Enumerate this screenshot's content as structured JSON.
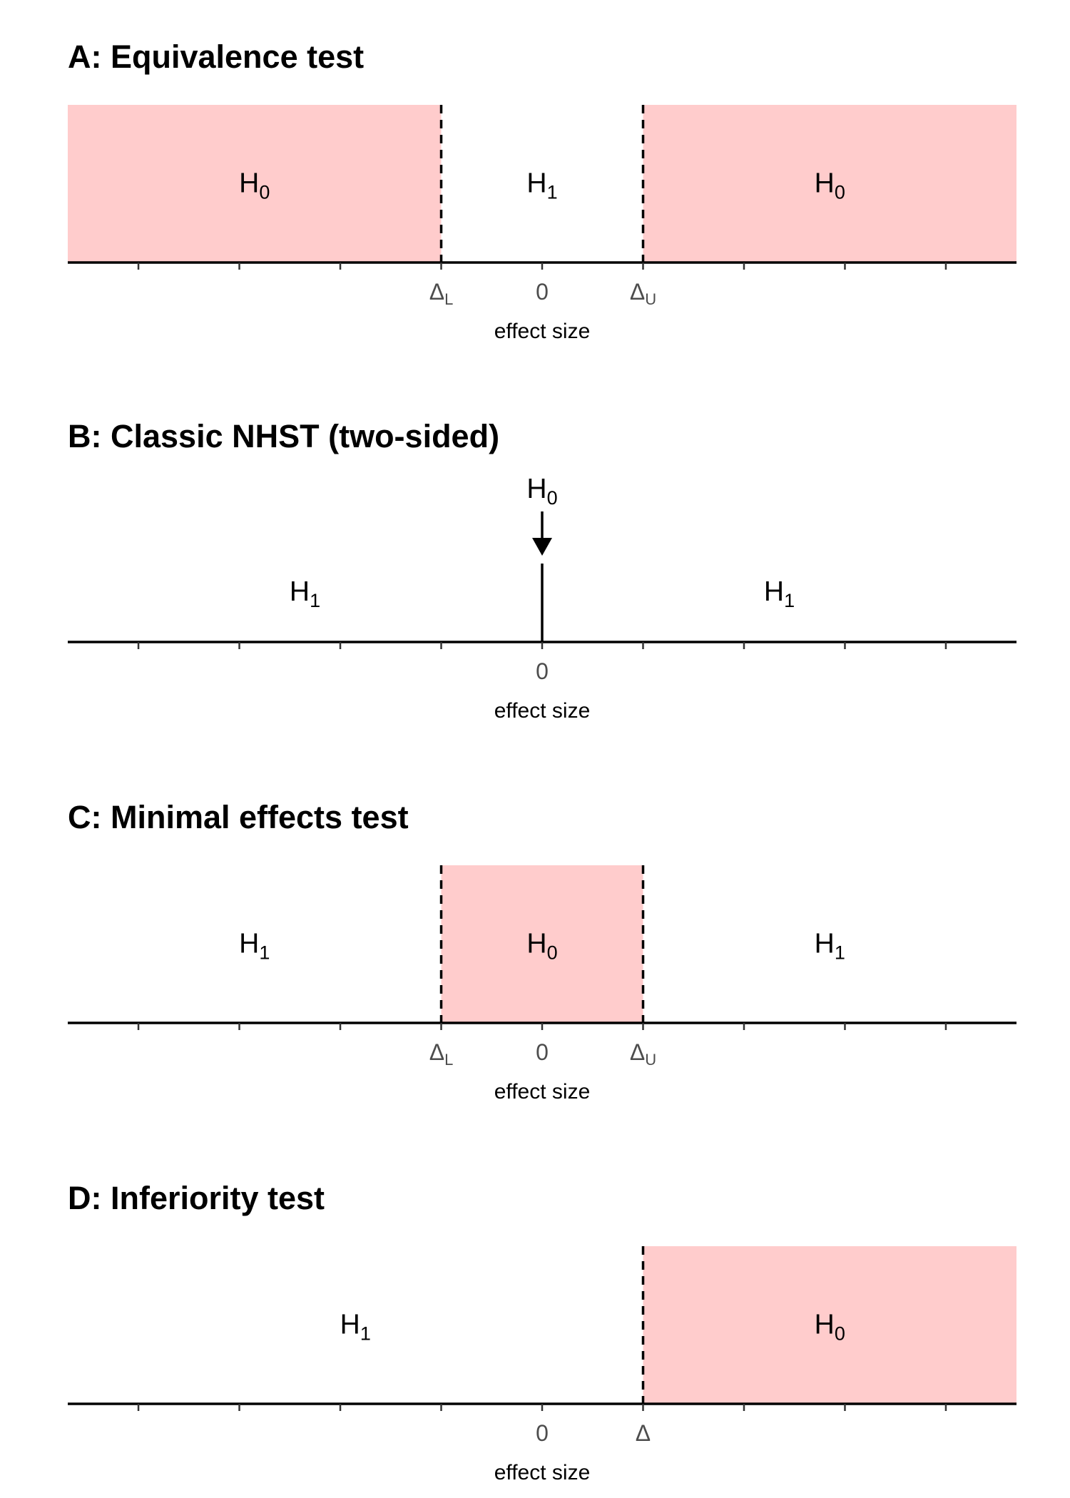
{
  "colors": {
    "null_region": "#ffcccc",
    "axis": "#000000",
    "tick_label": "#4d4d4d"
  },
  "chart_data": [
    {
      "type": "diagram",
      "title": "A: Equivalence test",
      "xlabel": "effect size",
      "tick_labels": [
        {
          "base": "Δ",
          "sub": "L",
          "value": -1
        },
        {
          "base": "0",
          "sub": "",
          "value": 0
        },
        {
          "base": "Δ",
          "sub": "U",
          "value": 1
        }
      ],
      "regions": [
        {
          "hypothesis": "H",
          "sub": "0",
          "from": -4.7,
          "to": -1,
          "shaded": true
        },
        {
          "hypothesis": "H",
          "sub": "1",
          "from": -1,
          "to": 1,
          "shaded": false
        },
        {
          "hypothesis": "H",
          "sub": "0",
          "from": 1,
          "to": 4.7,
          "shaded": true
        }
      ],
      "boundaries": [
        -1,
        1
      ],
      "point_null": null
    },
    {
      "type": "diagram",
      "title": "B: Classic NHST (two-sided)",
      "xlabel": "effect size",
      "tick_labels": [
        {
          "base": "0",
          "sub": "",
          "value": 0
        }
      ],
      "regions": [
        {
          "hypothesis": "H",
          "sub": "1",
          "from": -4.7,
          "to": 0,
          "shaded": false
        },
        {
          "hypothesis": "H",
          "sub": "1",
          "from": 0,
          "to": 4.7,
          "shaded": false
        }
      ],
      "boundaries": [],
      "point_null": {
        "hypothesis": "H",
        "sub": "0",
        "value": 0
      }
    },
    {
      "type": "diagram",
      "title": "C: Minimal effects test",
      "xlabel": "effect size",
      "tick_labels": [
        {
          "base": "Δ",
          "sub": "L",
          "value": -1
        },
        {
          "base": "0",
          "sub": "",
          "value": 0
        },
        {
          "base": "Δ",
          "sub": "U",
          "value": 1
        }
      ],
      "regions": [
        {
          "hypothesis": "H",
          "sub": "1",
          "from": -4.7,
          "to": -1,
          "shaded": false
        },
        {
          "hypothesis": "H",
          "sub": "0",
          "from": -1,
          "to": 1,
          "shaded": true
        },
        {
          "hypothesis": "H",
          "sub": "1",
          "from": 1,
          "to": 4.7,
          "shaded": false
        }
      ],
      "boundaries": [
        -1,
        1
      ],
      "point_null": null
    },
    {
      "type": "diagram",
      "title": "D: Inferiority test",
      "xlabel": "effect size",
      "tick_labels": [
        {
          "base": "0",
          "sub": "",
          "value": 0
        },
        {
          "base": "Δ",
          "sub": "",
          "value": 1
        }
      ],
      "regions": [
        {
          "hypothesis": "H",
          "sub": "1",
          "from": -4.7,
          "to": 1,
          "shaded": false
        },
        {
          "hypothesis": "H",
          "sub": "0",
          "from": 1,
          "to": 4.7,
          "shaded": true
        }
      ],
      "boundaries": [
        1
      ],
      "point_null": null
    }
  ],
  "axis": {
    "xlim": [
      -4.7,
      4.7
    ],
    "ticks": [
      -4,
      -3,
      -2,
      -1,
      0,
      1,
      2,
      3,
      4
    ]
  }
}
